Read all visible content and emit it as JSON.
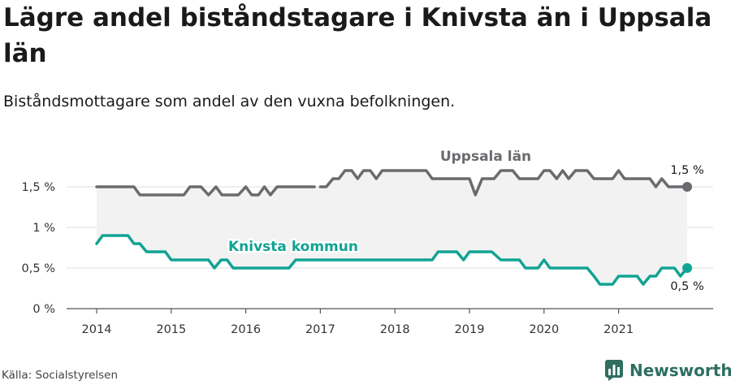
{
  "chart_data": {
    "type": "line",
    "title": "Lägre andel biståndstagare i Knivsta än i Uppsala län",
    "subtitle": "Biståndsmottagare som andel av den vuxna befolkningen.",
    "source": "Källa: Socialstyrelsen",
    "brand": "Newsworthy",
    "y_ticks": [
      "0 %",
      "0,5 %",
      "1 %",
      "1,5 %"
    ],
    "x_ticks": [
      "2014",
      "2015",
      "2016",
      "2017",
      "2018",
      "2019",
      "2020",
      "2021"
    ],
    "ylim": [
      0,
      2
    ],
    "xlim": [
      2013.6,
      2021.9
    ],
    "grid": true,
    "series": [
      {
        "name": "Uppsala län",
        "color": "#6b6b6f",
        "end_label": "1,5 %",
        "points": [
          [
            2014.0,
            1.5
          ],
          [
            2014.1,
            1.5
          ],
          [
            2014.2,
            1.5
          ],
          [
            2014.3,
            1.5
          ],
          [
            2014.4,
            1.5
          ],
          [
            2014.5,
            1.5
          ],
          [
            2014.58,
            1.4
          ],
          [
            2014.7,
            1.4
          ],
          [
            2014.8,
            1.4
          ],
          [
            2014.9,
            1.4
          ],
          [
            2015.0,
            1.4
          ],
          [
            2015.1,
            1.4
          ],
          [
            2015.17,
            1.4
          ],
          [
            2015.25,
            1.5
          ],
          [
            2015.4,
            1.5
          ],
          [
            2015.5,
            1.4
          ],
          [
            2015.6,
            1.5
          ],
          [
            2015.68,
            1.4
          ],
          [
            2015.8,
            1.4
          ],
          [
            2015.9,
            1.4
          ],
          [
            2016.0,
            1.5
          ],
          [
            2016.08,
            1.4
          ],
          [
            2016.17,
            1.4
          ],
          [
            2016.25,
            1.5
          ],
          [
            2016.33,
            1.4
          ],
          [
            2016.42,
            1.5
          ],
          [
            2016.5,
            1.5
          ],
          [
            2016.6,
            1.5
          ],
          [
            2016.7,
            1.5
          ],
          [
            2016.8,
            1.5
          ],
          [
            2016.92,
            1.5
          ],
          null,
          [
            2017.0,
            1.5
          ],
          [
            2017.08,
            1.5
          ],
          [
            2017.17,
            1.6
          ],
          [
            2017.25,
            1.6
          ],
          [
            2017.33,
            1.7
          ],
          [
            2017.42,
            1.7
          ],
          [
            2017.5,
            1.6
          ],
          [
            2017.58,
            1.7
          ],
          [
            2017.67,
            1.7
          ],
          [
            2017.75,
            1.6
          ],
          [
            2017.83,
            1.7
          ],
          [
            2017.92,
            1.7
          ],
          [
            2018.0,
            1.7
          ],
          [
            2018.1,
            1.7
          ],
          [
            2018.2,
            1.7
          ],
          [
            2018.3,
            1.7
          ],
          [
            2018.42,
            1.7
          ],
          [
            2018.5,
            1.6
          ],
          [
            2018.6,
            1.6
          ],
          [
            2018.7,
            1.6
          ],
          [
            2018.8,
            1.6
          ],
          [
            2018.9,
            1.6
          ],
          [
            2019.0,
            1.6
          ],
          [
            2019.08,
            1.4
          ],
          [
            2019.17,
            1.6
          ],
          [
            2019.25,
            1.6
          ],
          [
            2019.33,
            1.6
          ],
          [
            2019.42,
            1.7
          ],
          [
            2019.5,
            1.7
          ],
          [
            2019.58,
            1.7
          ],
          [
            2019.67,
            1.6
          ],
          [
            2019.75,
            1.6
          ],
          [
            2019.83,
            1.6
          ],
          [
            2019.92,
            1.6
          ],
          [
            2020.0,
            1.7
          ],
          [
            2020.08,
            1.7
          ],
          [
            2020.17,
            1.6
          ],
          [
            2020.25,
            1.7
          ],
          [
            2020.33,
            1.6
          ],
          [
            2020.42,
            1.7
          ],
          [
            2020.5,
            1.7
          ],
          [
            2020.58,
            1.7
          ],
          [
            2020.67,
            1.6
          ],
          [
            2020.75,
            1.6
          ],
          [
            2020.83,
            1.6
          ],
          [
            2020.92,
            1.6
          ],
          [
            2021.0,
            1.7
          ],
          [
            2021.08,
            1.6
          ],
          [
            2021.17,
            1.6
          ],
          [
            2021.25,
            1.6
          ],
          [
            2021.33,
            1.6
          ],
          [
            2021.42,
            1.6
          ],
          [
            2021.5,
            1.5
          ],
          [
            2021.58,
            1.6
          ],
          [
            2021.67,
            1.5
          ],
          [
            2021.75,
            1.5
          ],
          [
            2021.83,
            1.5
          ],
          [
            2021.92,
            1.5
          ]
        ]
      },
      {
        "name": "Knivsta kommun",
        "color": "#11a393",
        "end_label": "0,5 %",
        "points": [
          [
            2014.0,
            0.8
          ],
          [
            2014.08,
            0.9
          ],
          [
            2014.17,
            0.9
          ],
          [
            2014.25,
            0.9
          ],
          [
            2014.33,
            0.9
          ],
          [
            2014.42,
            0.9
          ],
          [
            2014.5,
            0.8
          ],
          [
            2014.58,
            0.8
          ],
          [
            2014.67,
            0.7
          ],
          [
            2014.75,
            0.7
          ],
          [
            2014.83,
            0.7
          ],
          [
            2014.92,
            0.7
          ],
          [
            2015.0,
            0.6
          ],
          [
            2015.1,
            0.6
          ],
          [
            2015.2,
            0.6
          ],
          [
            2015.3,
            0.6
          ],
          [
            2015.42,
            0.6
          ],
          [
            2015.5,
            0.6
          ],
          [
            2015.58,
            0.5
          ],
          [
            2015.67,
            0.6
          ],
          [
            2015.75,
            0.6
          ],
          [
            2015.83,
            0.5
          ],
          [
            2015.92,
            0.5
          ],
          [
            2016.0,
            0.5
          ],
          [
            2016.1,
            0.5
          ],
          [
            2016.2,
            0.5
          ],
          [
            2016.3,
            0.5
          ],
          [
            2016.42,
            0.5
          ],
          [
            2016.5,
            0.5
          ],
          [
            2016.58,
            0.5
          ],
          [
            2016.67,
            0.6
          ],
          [
            2016.75,
            0.6
          ],
          [
            2016.83,
            0.6
          ],
          [
            2016.92,
            0.6
          ],
          [
            2017.0,
            0.6
          ],
          [
            2017.1,
            0.6
          ],
          [
            2017.2,
            0.6
          ],
          [
            2017.3,
            0.6
          ],
          [
            2017.42,
            0.6
          ],
          [
            2017.5,
            0.6
          ],
          [
            2017.6,
            0.6
          ],
          [
            2017.7,
            0.6
          ],
          [
            2017.8,
            0.6
          ],
          [
            2017.92,
            0.6
          ],
          [
            2018.0,
            0.6
          ],
          [
            2018.1,
            0.6
          ],
          [
            2018.2,
            0.6
          ],
          [
            2018.3,
            0.6
          ],
          [
            2018.42,
            0.6
          ],
          [
            2018.5,
            0.6
          ],
          [
            2018.58,
            0.7
          ],
          [
            2018.67,
            0.7
          ],
          [
            2018.75,
            0.7
          ],
          [
            2018.83,
            0.7
          ],
          [
            2018.92,
            0.6
          ],
          [
            2019.0,
            0.7
          ],
          [
            2019.1,
            0.7
          ],
          [
            2019.2,
            0.7
          ],
          [
            2019.3,
            0.7
          ],
          [
            2019.42,
            0.6
          ],
          [
            2019.5,
            0.6
          ],
          [
            2019.58,
            0.6
          ],
          [
            2019.67,
            0.6
          ],
          [
            2019.75,
            0.5
          ],
          [
            2019.83,
            0.5
          ],
          [
            2019.92,
            0.5
          ],
          [
            2020.0,
            0.6
          ],
          [
            2020.08,
            0.5
          ],
          [
            2020.17,
            0.5
          ],
          [
            2020.25,
            0.5
          ],
          [
            2020.33,
            0.5
          ],
          [
            2020.42,
            0.5
          ],
          [
            2020.5,
            0.5
          ],
          [
            2020.58,
            0.5
          ],
          [
            2020.67,
            0.4
          ],
          [
            2020.75,
            0.3
          ],
          [
            2020.83,
            0.3
          ],
          [
            2020.92,
            0.3
          ],
          [
            2021.0,
            0.4
          ],
          [
            2021.08,
            0.4
          ],
          [
            2021.17,
            0.4
          ],
          [
            2021.25,
            0.4
          ],
          [
            2021.33,
            0.3
          ],
          [
            2021.42,
            0.4
          ],
          [
            2021.5,
            0.4
          ],
          [
            2021.58,
            0.5
          ],
          [
            2021.67,
            0.5
          ],
          [
            2021.75,
            0.5
          ],
          [
            2021.83,
            0.4
          ],
          [
            2021.92,
            0.5
          ]
        ]
      }
    ]
  }
}
